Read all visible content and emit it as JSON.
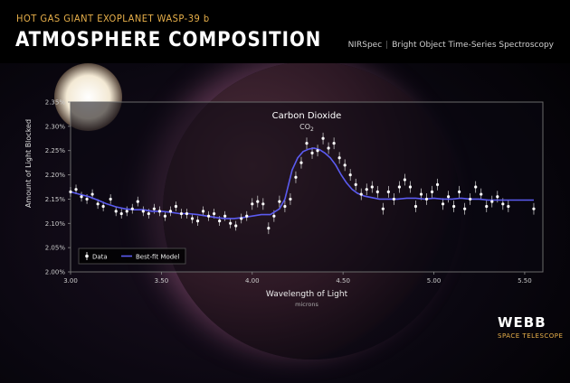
{
  "header": {
    "supertitle": "HOT GAS GIANT EXOPLANET WASP-39 b",
    "title": "ATMOSPHERE COMPOSITION",
    "instrument": "NIRSpec",
    "mode": "Bright Object Time-Series Spectroscopy"
  },
  "logo": {
    "word": "WEBB",
    "sub": "SPACE TELESCOPE"
  },
  "colors": {
    "accent": "#e8b04a",
    "model": "#5b5bf0",
    "data": "#ffffff"
  },
  "chart_data": {
    "type": "scatter",
    "xlabel": "Wavelength of Light",
    "xunit": "microns",
    "ylabel": "Amount of Light Blocked",
    "xlim": [
      3.0,
      5.6
    ],
    "ylim": [
      2.0,
      2.35
    ],
    "xticks": [
      "3.00",
      "3.50",
      "4.00",
      "4.50",
      "5.00",
      "5.50"
    ],
    "yticks": [
      "2.00%",
      "2.05%",
      "2.10%",
      "2.15%",
      "2.20%",
      "2.25%",
      "2.30%",
      "2.35%"
    ],
    "grid": false,
    "legend_position": "bottom-left",
    "annotation": {
      "label": "Carbon Dioxide",
      "formula": "CO",
      "subscript": "2",
      "x": 4.3
    },
    "series": [
      {
        "name": "Data",
        "kind": "points-with-errorbars",
        "x": [
          3.0,
          3.03,
          3.06,
          3.09,
          3.12,
          3.15,
          3.18,
          3.22,
          3.25,
          3.28,
          3.31,
          3.34,
          3.37,
          3.4,
          3.43,
          3.46,
          3.49,
          3.52,
          3.55,
          3.58,
          3.61,
          3.64,
          3.67,
          3.7,
          3.73,
          3.76,
          3.79,
          3.82,
          3.85,
          3.88,
          3.91,
          3.94,
          3.97,
          4.0,
          4.03,
          4.06,
          4.09,
          4.12,
          4.15,
          4.18,
          4.21,
          4.24,
          4.27,
          4.3,
          4.33,
          4.36,
          4.39,
          4.42,
          4.45,
          4.48,
          4.51,
          4.54,
          4.57,
          4.6,
          4.63,
          4.66,
          4.69,
          4.72,
          4.75,
          4.78,
          4.81,
          4.84,
          4.87,
          4.9,
          4.93,
          4.96,
          4.99,
          5.02,
          5.05,
          5.08,
          5.11,
          5.14,
          5.17,
          5.2,
          5.23,
          5.26,
          5.29,
          5.32,
          5.35,
          5.38,
          5.41,
          5.55
        ],
        "y": [
          2.165,
          2.17,
          2.155,
          2.15,
          2.16,
          2.14,
          2.135,
          2.15,
          2.125,
          2.12,
          2.125,
          2.13,
          2.145,
          2.125,
          2.12,
          2.13,
          2.125,
          2.115,
          2.125,
          2.135,
          2.12,
          2.12,
          2.11,
          2.105,
          2.125,
          2.115,
          2.12,
          2.105,
          2.115,
          2.1,
          2.095,
          2.11,
          2.115,
          2.14,
          2.145,
          2.14,
          2.09,
          2.115,
          2.145,
          2.135,
          2.15,
          2.195,
          2.225,
          2.265,
          2.245,
          2.25,
          2.275,
          2.255,
          2.265,
          2.235,
          2.22,
          2.2,
          2.18,
          2.16,
          2.17,
          2.175,
          2.165,
          2.13,
          2.165,
          2.15,
          2.175,
          2.19,
          2.175,
          2.135,
          2.16,
          2.15,
          2.165,
          2.18,
          2.14,
          2.155,
          2.135,
          2.165,
          2.13,
          2.15,
          2.175,
          2.16,
          2.135,
          2.145,
          2.155,
          2.14,
          2.135,
          2.13
        ],
        "yerr": [
          0.01,
          0.01,
          0.01,
          0.01,
          0.01,
          0.01,
          0.01,
          0.01,
          0.01,
          0.01,
          0.01,
          0.01,
          0.01,
          0.01,
          0.01,
          0.01,
          0.01,
          0.01,
          0.01,
          0.01,
          0.01,
          0.01,
          0.01,
          0.01,
          0.01,
          0.01,
          0.01,
          0.01,
          0.01,
          0.01,
          0.01,
          0.01,
          0.01,
          0.012,
          0.012,
          0.012,
          0.012,
          0.012,
          0.012,
          0.012,
          0.012,
          0.012,
          0.012,
          0.012,
          0.012,
          0.012,
          0.012,
          0.012,
          0.012,
          0.012,
          0.012,
          0.012,
          0.012,
          0.012,
          0.012,
          0.012,
          0.012,
          0.012,
          0.012,
          0.012,
          0.012,
          0.012,
          0.012,
          0.012,
          0.012,
          0.012,
          0.012,
          0.012,
          0.012,
          0.012,
          0.012,
          0.012,
          0.012,
          0.012,
          0.012,
          0.012,
          0.012,
          0.012,
          0.012,
          0.012,
          0.012,
          0.012
        ]
      },
      {
        "name": "Best-fit Model",
        "kind": "line",
        "x": [
          3.0,
          3.05,
          3.1,
          3.15,
          3.2,
          3.25,
          3.3,
          3.35,
          3.4,
          3.45,
          3.5,
          3.55,
          3.6,
          3.65,
          3.7,
          3.75,
          3.8,
          3.85,
          3.9,
          3.95,
          4.0,
          4.05,
          4.1,
          4.15,
          4.18,
          4.2,
          4.22,
          4.25,
          4.28,
          4.31,
          4.34,
          4.37,
          4.4,
          4.43,
          4.46,
          4.49,
          4.52,
          4.55,
          4.58,
          4.62,
          4.66,
          4.7,
          4.75,
          4.8,
          4.85,
          4.9,
          4.95,
          5.0,
          5.05,
          5.1,
          5.15,
          5.2,
          5.25,
          5.3,
          5.35,
          5.4,
          5.45,
          5.5,
          5.55
        ],
        "y": [
          2.165,
          2.16,
          2.155,
          2.148,
          2.14,
          2.134,
          2.13,
          2.128,
          2.128,
          2.125,
          2.125,
          2.123,
          2.12,
          2.12,
          2.118,
          2.115,
          2.112,
          2.11,
          2.11,
          2.112,
          2.115,
          2.118,
          2.118,
          2.13,
          2.15,
          2.18,
          2.21,
          2.235,
          2.248,
          2.253,
          2.255,
          2.252,
          2.245,
          2.235,
          2.22,
          2.2,
          2.183,
          2.17,
          2.162,
          2.156,
          2.153,
          2.15,
          2.15,
          2.15,
          2.152,
          2.152,
          2.15,
          2.152,
          2.15,
          2.15,
          2.152,
          2.15,
          2.15,
          2.148,
          2.148,
          2.148,
          2.148,
          2.148,
          2.148
        ]
      }
    ]
  }
}
